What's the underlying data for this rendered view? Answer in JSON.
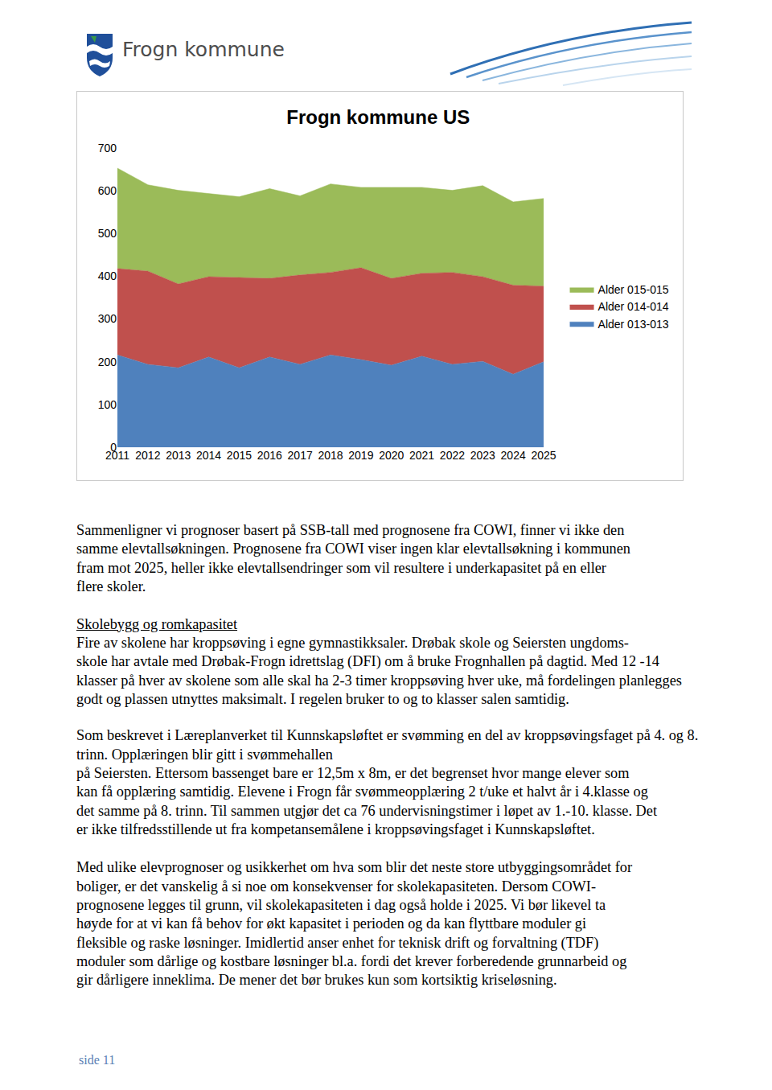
{
  "header": {
    "logo_text": "Frogn kommune"
  },
  "chart_data": {
    "type": "area",
    "stacked": true,
    "title": "Frogn kommune US",
    "categories": [
      "2011",
      "2012",
      "2013",
      "2014",
      "2015",
      "2016",
      "2017",
      "2018",
      "2019",
      "2020",
      "2021",
      "2022",
      "2023",
      "2024",
      "2025"
    ],
    "series": [
      {
        "name": "Alder 013-013",
        "color": "#4f81bd",
        "values": [
          216,
          194,
          186,
          211,
          186,
          211,
          194,
          216,
          205,
          192,
          213,
          194,
          201,
          171,
          200
        ]
      },
      {
        "name": "Alder 014-014",
        "color": "#c0504d",
        "values": [
          202,
          218,
          196,
          188,
          211,
          184,
          209,
          193,
          215,
          203,
          194,
          215,
          198,
          208,
          177
        ]
      },
      {
        "name": "Alder 015-015",
        "color": "#9bbb59",
        "values": [
          235,
          202,
          219,
          194,
          189,
          210,
          185,
          207,
          188,
          213,
          201,
          192,
          213,
          195,
          205
        ]
      }
    ],
    "ylim": [
      0,
      700
    ],
    "yticks": [
      0,
      100,
      200,
      300,
      400,
      500,
      600,
      700
    ],
    "grid": false,
    "legend": "right"
  },
  "paragraphs": [
    {
      "lines": [
        "Sammenligner vi prognoser basert på SSB-tall med prognosene fra COWI, finner vi ikke den",
        "samme elevtallsøkningen. Prognosene fra COWI viser ingen klar elevtallsøkning i kommunen",
        "fram mot 2025, heller ikke elevtallsendringer som vil resultere i underkapasitet på en eller",
        "flere skoler."
      ]
    },
    {
      "heading": "Skolebygg og romkapasitet",
      "lines": [
        "Fire av skolene har kroppsøving i egne gymnastikksaler. Drøbak skole og Seiersten ungdoms-",
        "skole har avtale med Drøbak-Frogn idrettslag (DFI) om å bruke Frognhallen på dagtid. Med 12 -14",
        "klasser på hver av skolene som alle skal ha 2-3 timer kroppsøving hver uke, må fordelingen planlegges",
        "godt og plassen utnyttes maksimalt. I regelen bruker to og to klasser salen samtidig."
      ]
    },
    {
      "lines": [
        "Som beskrevet i Læreplanverket til Kunnskapsløftet er svømming en del av kroppsøvingsfaget på 4. og 8.",
        "trinn. Opplæringen blir gitt i svømmehallen",
        "på Seiersten. Ettersom bassenget bare er 12,5m x 8m, er det begrenset hvor mange elever som",
        "kan få opplæring samtidig. Elevene i Frogn får svømmeopplæring 2 t/uke et halvt år i 4.klasse og",
        "det samme på 8. trinn. Til sammen utgjør det ca 76 undervisningstimer i løpet av 1.-10. klasse. Det",
        "er ikke tilfredsstillende ut fra kompetansemålene i kroppsøvingsfaget i Kunnskapsløftet."
      ]
    },
    {
      "lines": [
        "Med ulike elevprognoser og usikkerhet om hva som blir det neste store utbyggingsområdet for",
        "boliger, er det vanskelig å si noe om konsekvenser for skolekapasiteten. Dersom COWI-",
        "prognosene legges til grunn, vil skolekapasiteten i dag også holde i 2025. Vi bør likevel ta",
        "høyde for at vi kan få behov for økt kapasitet i perioden og da kan flyttbare moduler gi",
        "fleksible og raske løsninger. Imidlertid anser enhet for teknisk drift og forvaltning (TDF)",
        "moduler som dårlige og kostbare løsninger bl.a. fordi det krever forberedende grunnarbeid og",
        "gir dårligere inneklima. De mener det bør brukes kun som kortsiktig kriseløsning."
      ]
    }
  ],
  "footer": {
    "page": "side 11"
  }
}
